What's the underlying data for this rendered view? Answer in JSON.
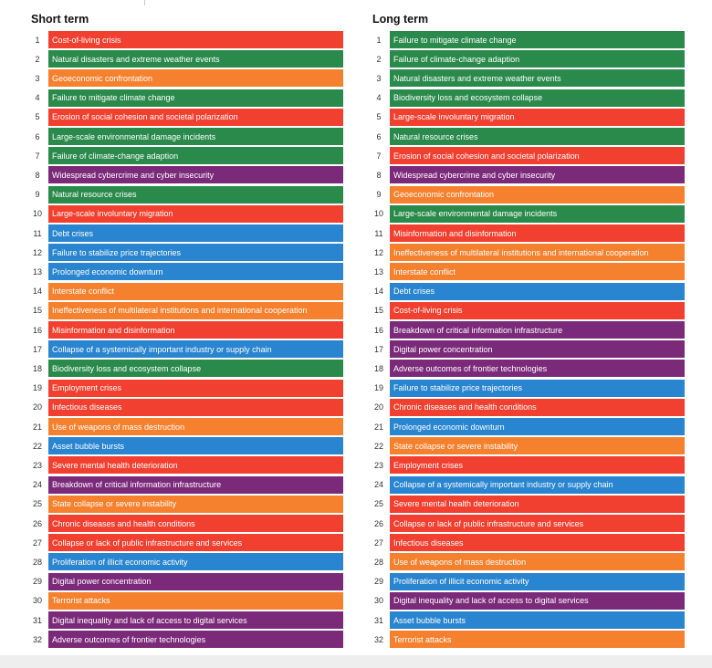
{
  "chart_data": {
    "type": "table",
    "colors": {
      "economic": "#2985cf",
      "environmental": "#2a8a4b",
      "geopolitical": "#f5812e",
      "societal": "#f24030",
      "technological": "#7b2a7a"
    },
    "panels": [
      {
        "title": "Short term",
        "items": [
          {
            "rank": "1",
            "label": "Cost-of-living crisis",
            "category": "societal"
          },
          {
            "rank": "2",
            "label": "Natural disasters and extreme weather events",
            "category": "environmental"
          },
          {
            "rank": "3",
            "label": "Geoeconomic confrontation",
            "category": "geopolitical"
          },
          {
            "rank": "4",
            "label": "Failure to mitigate climate change",
            "category": "environmental"
          },
          {
            "rank": "5",
            "label": "Erosion of social cohesion and societal polarization",
            "category": "societal"
          },
          {
            "rank": "6",
            "label": "Large-scale environmental damage incidents",
            "category": "environmental"
          },
          {
            "rank": "7",
            "label": "Failure of climate-change adaption",
            "category": "environmental"
          },
          {
            "rank": "8",
            "label": "Widespread cybercrime and cyber insecurity",
            "category": "technological"
          },
          {
            "rank": "9",
            "label": "Natural resource crises",
            "category": "environmental"
          },
          {
            "rank": "10",
            "label": "Large-scale involuntary migration",
            "category": "societal"
          },
          {
            "rank": "11",
            "label": "Debt crises",
            "category": "economic"
          },
          {
            "rank": "12",
            "label": "Failure to stabilize price trajectories",
            "category": "economic"
          },
          {
            "rank": "13",
            "label": "Prolonged economic downturn",
            "category": "economic"
          },
          {
            "rank": "14",
            "label": "Interstate conflict",
            "category": "geopolitical"
          },
          {
            "rank": "15",
            "label": "Ineffectiveness of multilateral institutions and international cooperation",
            "category": "geopolitical"
          },
          {
            "rank": "16",
            "label": "Misinformation and disinformation",
            "category": "societal"
          },
          {
            "rank": "17",
            "label": "Collapse of a systemically important industry or supply chain",
            "category": "economic"
          },
          {
            "rank": "18",
            "label": "Biodiversity loss and ecosystem collapse",
            "category": "environmental"
          },
          {
            "rank": "19",
            "label": "Employment crises",
            "category": "societal"
          },
          {
            "rank": "20",
            "label": "Infectious diseases",
            "category": "societal"
          },
          {
            "rank": "21",
            "label": "Use of weapons of mass destruction",
            "category": "geopolitical"
          },
          {
            "rank": "22",
            "label": "Asset bubble bursts",
            "category": "economic"
          },
          {
            "rank": "23",
            "label": "Severe mental health deterioration",
            "category": "societal"
          },
          {
            "rank": "24",
            "label": "Breakdown of critical information infrastructure",
            "category": "technological"
          },
          {
            "rank": "25",
            "label": "State collapse or severe instability",
            "category": "geopolitical"
          },
          {
            "rank": "26",
            "label": "Chronic diseases and health conditions",
            "category": "societal"
          },
          {
            "rank": "27",
            "label": "Collapse or lack of public infrastructure and services",
            "category": "societal"
          },
          {
            "rank": "28",
            "label": "Proliferation of illicit economic activity",
            "category": "economic"
          },
          {
            "rank": "29",
            "label": "Digital power concentration",
            "category": "technological"
          },
          {
            "rank": "30",
            "label": "Terrorist attacks",
            "category": "geopolitical"
          },
          {
            "rank": "31",
            "label": "Digital inequality and lack of access to digital services",
            "category": "technological"
          },
          {
            "rank": "32",
            "label": "Adverse outcomes of frontier technologies",
            "category": "technological"
          }
        ]
      },
      {
        "title": "Long term",
        "items": [
          {
            "rank": "1",
            "label": "Failure to mitigate climate change",
            "category": "environmental"
          },
          {
            "rank": "2",
            "label": "Failure of climate-change adaption",
            "category": "environmental"
          },
          {
            "rank": "3",
            "label": "Natural disasters and extreme weather events",
            "category": "environmental"
          },
          {
            "rank": "4",
            "label": "Biodiversity loss and ecosystem collapse",
            "category": "environmental"
          },
          {
            "rank": "5",
            "label": "Large-scale involuntary migration",
            "category": "societal"
          },
          {
            "rank": "6",
            "label": "Natural resource crises",
            "category": "environmental"
          },
          {
            "rank": "7",
            "label": "Erosion of social cohesion and societal polarization",
            "category": "societal"
          },
          {
            "rank": "8",
            "label": "Widespread cybercrime and cyber insecurity",
            "category": "technological"
          },
          {
            "rank": "9",
            "label": "Geoeconomic confrontation",
            "category": "geopolitical"
          },
          {
            "rank": "10",
            "label": "Large-scale environmental damage incidents",
            "category": "environmental"
          },
          {
            "rank": "11",
            "label": "Misinformation and disinformation",
            "category": "societal"
          },
          {
            "rank": "12",
            "label": "Ineffectiveness of multilateral institutions and international cooperation",
            "category": "geopolitical"
          },
          {
            "rank": "13",
            "label": "Interstate conflict",
            "category": "geopolitical"
          },
          {
            "rank": "14",
            "label": "Debt crises",
            "category": "economic"
          },
          {
            "rank": "15",
            "label": "Cost-of-living crisis",
            "category": "societal"
          },
          {
            "rank": "16",
            "label": "Breakdown of critical information infrastructure",
            "category": "technological"
          },
          {
            "rank": "17",
            "label": "Digital power concentration",
            "category": "technological"
          },
          {
            "rank": "18",
            "label": "Adverse outcomes of frontier technologies",
            "category": "technological"
          },
          {
            "rank": "19",
            "label": "Failure to stabilize price trajectories",
            "category": "economic"
          },
          {
            "rank": "20",
            "label": "Chronic diseases and health conditions",
            "category": "societal"
          },
          {
            "rank": "21",
            "label": "Prolonged economic downturn",
            "category": "economic"
          },
          {
            "rank": "22",
            "label": "State collapse or severe instability",
            "category": "geopolitical"
          },
          {
            "rank": "23",
            "label": "Employment crises",
            "category": "societal"
          },
          {
            "rank": "24",
            "label": "Collapse of a systemically important industry or supply chain",
            "category": "economic"
          },
          {
            "rank": "25",
            "label": "Severe mental health deterioration",
            "category": "societal"
          },
          {
            "rank": "26",
            "label": "Collapse or lack of public infrastructure and services",
            "category": "societal"
          },
          {
            "rank": "27",
            "label": "Infectious diseases",
            "category": "societal"
          },
          {
            "rank": "28",
            "label": "Use of weapons of mass destruction",
            "category": "geopolitical"
          },
          {
            "rank": "29",
            "label": "Proliferation of illicit economic activity",
            "category": "economic"
          },
          {
            "rank": "30",
            "label": "Digital inequality and lack of access to digital services",
            "category": "technological"
          },
          {
            "rank": "31",
            "label": "Asset bubble bursts",
            "category": "economic"
          },
          {
            "rank": "32",
            "label": "Terrorist attacks",
            "category": "geopolitical"
          }
        ]
      }
    ]
  }
}
